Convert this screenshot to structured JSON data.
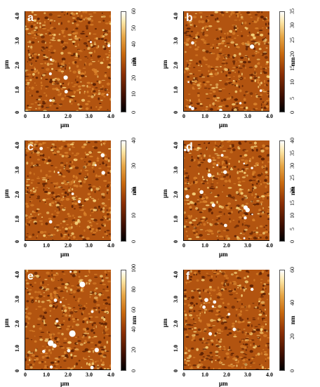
{
  "panels": [
    {
      "label": "a",
      "cmax": 60,
      "cticks": [
        0,
        10,
        20,
        30,
        40,
        50,
        60
      ],
      "xticks": [
        "0",
        "1.0",
        "2.0",
        "3.0",
        "4.0"
      ],
      "yticks": [
        "0",
        "1.0",
        "2.0",
        "3.0",
        "4.0"
      ],
      "xunit": "µm",
      "yunit": "µm",
      "cunit": "nm"
    },
    {
      "label": "b",
      "cmax": 35,
      "cticks": [
        0,
        5,
        10,
        15,
        20,
        25,
        30,
        35
      ],
      "xticks": [
        "0",
        "1.0",
        "2.0",
        "3.0",
        "4.0"
      ],
      "yticks": [
        "0",
        "1.0",
        "2.0",
        "3.0",
        "4.0"
      ],
      "xunit": "µm",
      "yunit": "µm",
      "cunit": "nm"
    },
    {
      "label": "c",
      "cmax": 40,
      "cticks": [
        0,
        10,
        20,
        30,
        40
      ],
      "xticks": [
        "0",
        "1.0",
        "2.0",
        "3.0",
        "4.0"
      ],
      "yticks": [
        "0",
        "1.0",
        "2.0",
        "3.0",
        "4.0"
      ],
      "xunit": "µm",
      "yunit": "µm",
      "cunit": "nm"
    },
    {
      "label": "d",
      "cmax": 40,
      "cticks": [
        0,
        5,
        10,
        15,
        20,
        25,
        30,
        35,
        40
      ],
      "xticks": [
        "0",
        "1.0",
        "2.0",
        "3.0",
        "4.0"
      ],
      "yticks": [
        "0",
        "1.0",
        "2.0",
        "3.0",
        "4.0"
      ],
      "xunit": "µm",
      "yunit": "µm",
      "cunit": "nm"
    },
    {
      "label": "e",
      "cmax": 100,
      "cticks": [
        0,
        20,
        40,
        60,
        80,
        100
      ],
      "xticks": [
        "0",
        "1.0",
        "2.0",
        "3.0",
        "4.0"
      ],
      "yticks": [
        "0",
        "1.0",
        "2.0",
        "3.0",
        "4.0"
      ],
      "xunit": "µm",
      "yunit": "µm",
      "cunit": "nm"
    },
    {
      "label": "f",
      "cmax": 60,
      "cticks": [
        0,
        20,
        40,
        60
      ],
      "xticks": [
        "0",
        "1.0",
        "2.0",
        "3.0",
        "4.0"
      ],
      "yticks": [
        "0",
        "1.0",
        "2.0",
        "3.0",
        "4.0"
      ],
      "xunit": "µm",
      "yunit": "µm",
      "cunit": "nm"
    }
  ],
  "colors": {
    "base": "#b25410",
    "dark": "#5a1f03",
    "mid": "#d9822b",
    "light": "#f6d27a",
    "white": "#ffffff"
  }
}
